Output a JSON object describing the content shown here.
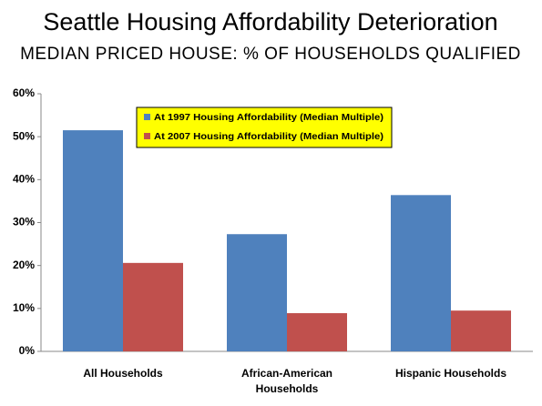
{
  "chart_data": {
    "type": "bar",
    "title": "Seattle Housing Affordability Deterioration",
    "subtitle": "MEDIAN PRICED HOUSE: % OF HOUSEHOLDS QUALIFIED",
    "categories": [
      "All Households",
      "African-American Households",
      "Hispanic Households"
    ],
    "series": [
      {
        "name": "At 1997 Housing Affordability (Median Multiple)",
        "color": "#4f81bd",
        "values": [
          51.5,
          27.3,
          36.4
        ]
      },
      {
        "name": "At 2007 Housing Affordability (Median Multiple)",
        "color": "#c0504d",
        "values": [
          20.6,
          8.9,
          9.5
        ]
      }
    ],
    "ylim": [
      0,
      60
    ],
    "yticks": [
      {
        "value": 0,
        "label": "0%"
      },
      {
        "value": 10,
        "label": "10%"
      },
      {
        "value": 20,
        "label": "20%"
      },
      {
        "value": 30,
        "label": "30%"
      },
      {
        "value": 40,
        "label": "40%"
      },
      {
        "value": 50,
        "label": "50%"
      },
      {
        "value": 60,
        "label": "60%"
      }
    ],
    "grid": false,
    "legend": "top-center",
    "legend_background": "#ffff00"
  }
}
